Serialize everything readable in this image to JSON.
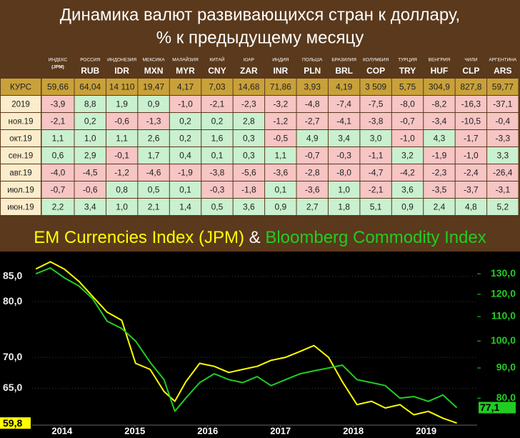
{
  "header": {
    "title_lines": [
      "Динамика валют развивающихся стран к доллару,",
      "% к предыдущему месяцу"
    ]
  },
  "table": {
    "columns": [
      {
        "country": "ИНДЕКС",
        "code": "(JPM)"
      },
      {
        "country": "РОССИЯ",
        "code": "RUB"
      },
      {
        "country": "ИНДОНЕЗИЯ",
        "code": "IDR"
      },
      {
        "country": "МЕКСИКА",
        "code": "MXN"
      },
      {
        "country": "МАЛАЙЗИЯ",
        "code": "MYR"
      },
      {
        "country": "КИТАЙ",
        "code": "CNY"
      },
      {
        "country": "ЮАР",
        "code": "ZAR"
      },
      {
        "country": "ИНДИЯ",
        "code": "INR"
      },
      {
        "country": "ПОЛЬША",
        "code": "PLN"
      },
      {
        "country": "БРАЗИЛИЯ",
        "code": "BRL"
      },
      {
        "country": "КОЛУМБИЯ",
        "code": "COP"
      },
      {
        "country": "ТУРЦИЯ",
        "code": "TRY"
      },
      {
        "country": "ВЕНГРИЯ",
        "code": "HUF"
      },
      {
        "country": "ЧИЛИ",
        "code": "CLP"
      },
      {
        "country": "АРГЕНТИНА",
        "code": "ARS"
      }
    ],
    "rows": [
      {
        "label": "КУРС",
        "cells": [
          "59,66",
          "64,04",
          "14 110",
          "19,47",
          "4,17",
          "7,03",
          "14,68",
          "71,86",
          "3,93",
          "4,19",
          "3 509",
          "5,75",
          "304,9",
          "827,8",
          "59,77"
        ]
      },
      {
        "label": "2019",
        "cells": [
          "-3,9",
          "8,8",
          "1,9",
          "0,9",
          "-1,0",
          "-2,1",
          "-2,3",
          "-3,2",
          "-4,8",
          "-7,4",
          "-7,5",
          "-8,0",
          "-8,2",
          "-16,3",
          "-37,1"
        ]
      },
      {
        "label": "ноя.19",
        "cells": [
          "-2,1",
          "0,2",
          "-0,6",
          "-1,3",
          "0,2",
          "0,2",
          "2,8",
          "-1,2",
          "-2,7",
          "-4,1",
          "-3,8",
          "-0,7",
          "-3,4",
          "-10,5",
          "-0,4"
        ]
      },
      {
        "label": "окт.19",
        "cells": [
          "1,1",
          "1,0",
          "1,1",
          "2,6",
          "0,2",
          "1,6",
          "0,3",
          "-0,5",
          "4,9",
          "3,4",
          "3,0",
          "-1,0",
          "4,3",
          "-1,7",
          "-3,3"
        ]
      },
      {
        "label": "сен.19",
        "cells": [
          "0,6",
          "2,9",
          "-0,1",
          "1,7",
          "0,4",
          "0,1",
          "0,3",
          "1,1",
          "-0,7",
          "-0,3",
          "-1,1",
          "3,2",
          "-1,9",
          "-1,0",
          "3,3"
        ]
      },
      {
        "label": "авг.19",
        "cells": [
          "-4,0",
          "-4,5",
          "-1,2",
          "-4,6",
          "-1,9",
          "-3,8",
          "-5,6",
          "-3,6",
          "-2,8",
          "-8,0",
          "-4,7",
          "-4,2",
          "-2,3",
          "-2,4",
          "-26,4"
        ]
      },
      {
        "label": "июл.19",
        "cells": [
          "-0,7",
          "-0,6",
          "0,8",
          "0,5",
          "0,1",
          "-0,3",
          "-1,8",
          "0,1",
          "-3,6",
          "1,0",
          "-2,1",
          "3,6",
          "-3,5",
          "-3,7",
          "-3,1"
        ]
      },
      {
        "label": "июн.19",
        "cells": [
          "2,2",
          "3,4",
          "1,0",
          "2,1",
          "1,4",
          "0,5",
          "3,6",
          "0,9",
          "2,7",
          "1,8",
          "5,1",
          "0,9",
          "2,4",
          "4,8",
          "5,2"
        ]
      }
    ]
  },
  "chart_data": {
    "type": "line",
    "title_separator": "&",
    "x": [
      2014.14,
      2014.34,
      2014.53,
      2014.73,
      2014.92,
      2015.12,
      2015.32,
      2015.51,
      2015.71,
      2015.9,
      2016.05,
      2016.2,
      2016.39,
      2016.59,
      2016.79,
      2016.98,
      2017.18,
      2017.37,
      2017.57,
      2017.77,
      2017.96,
      2018.16,
      2018.35,
      2018.55,
      2018.75,
      2018.94,
      2019.14,
      2019.33,
      2019.53,
      2019.73,
      2019.92
    ],
    "xlim": [
      2014.09,
      2020.2
    ],
    "xticks": [
      {
        "value": 2014.5,
        "label": "2014"
      },
      {
        "value": 2015.5,
        "label": "2015"
      },
      {
        "value": 2016.5,
        "label": "2016"
      },
      {
        "value": 2017.5,
        "label": "2017"
      },
      {
        "value": 2018.5,
        "label": "2018"
      },
      {
        "value": 2019.5,
        "label": "2019"
      }
    ],
    "ylim": [
      59.5,
      90.2
    ],
    "log_y": true,
    "yticks": [
      {
        "value": 65,
        "label": "65,0"
      },
      {
        "value": 70,
        "label": "70,0"
      },
      {
        "value": 80,
        "label": "80,0"
      },
      {
        "value": 85,
        "label": "85,0"
      }
    ],
    "y2lim": [
      72.0,
      141.8
    ],
    "log_y2": true,
    "y2ticks": [
      {
        "value": 80,
        "label": "80,0"
      },
      {
        "value": 90,
        "label": "90,0"
      },
      {
        "value": 100,
        "label": "100,0"
      },
      {
        "value": 110,
        "label": "110,0"
      },
      {
        "value": 120,
        "label": "120,0"
      },
      {
        "value": 130,
        "label": "130,0"
      }
    ],
    "series": [
      {
        "name": "EM Currencies Index (JPM)",
        "color": "#ffff00",
        "last_value_label": "59,8",
        "values": [
          86.5,
          88.0,
          86.5,
          84.0,
          81.0,
          78.0,
          76.5,
          69.0,
          68.0,
          64.5,
          63.0,
          66.0,
          69.0,
          68.5,
          67.5,
          68.0,
          68.5,
          69.5,
          70.0,
          71.0,
          72.0,
          70.0,
          66.0,
          62.5,
          63.0,
          62.0,
          62.5,
          61.0,
          61.5,
          60.5,
          59.8
        ]
      },
      {
        "name": "Bloomberg Commodity Index",
        "color": "#22cc22",
        "axis": "y2",
        "last_value_label": "77,1",
        "values": [
          130.0,
          133.0,
          128.0,
          124.0,
          118.0,
          108.0,
          105.0,
          100.0,
          92.0,
          86.0,
          76.0,
          80.0,
          85.0,
          88.0,
          86.0,
          85.0,
          87.0,
          84.0,
          86.0,
          88.0,
          89.0,
          90.0,
          91.0,
          86.0,
          85.0,
          84.0,
          80.0,
          80.5,
          79.0,
          81.0,
          77.1
        ]
      }
    ]
  }
}
